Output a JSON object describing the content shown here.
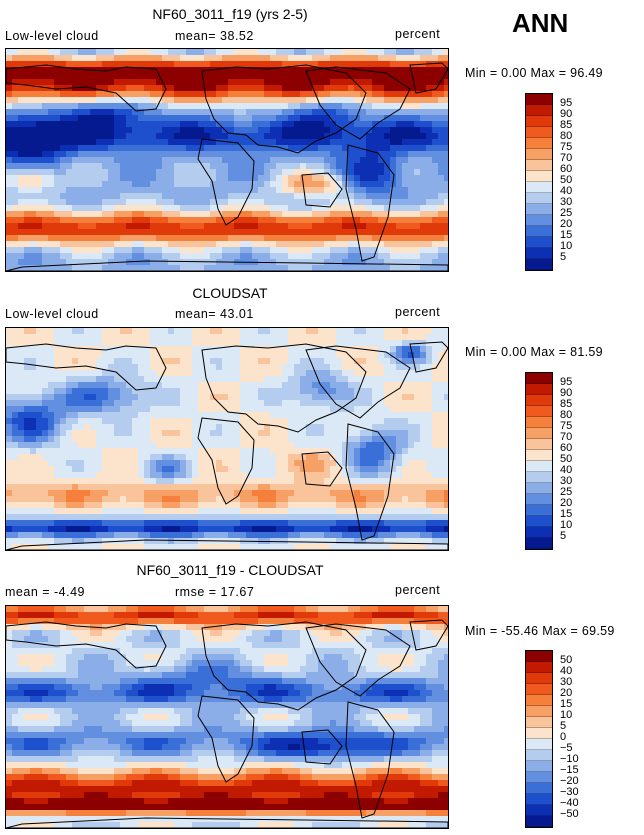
{
  "season": "ANN",
  "panels": [
    {
      "title": "NF60_3011_f19 (yrs 2-5)",
      "left_label": "Low-level cloud",
      "mid_label": "mean=  38.52",
      "units": "percent",
      "range_text": "Min =    0.00 Max =  96.49",
      "colorbar": {
        "labels": [
          "95",
          "90",
          "85",
          "80",
          "75",
          "70",
          "60",
          "50",
          "40",
          "30",
          "25",
          "20",
          "15",
          "10",
          "5"
        ],
        "colors": [
          "#8c0000",
          "#c21a00",
          "#e03a0a",
          "#f05a1e",
          "#f5803c",
          "#f7a066",
          "#f9c49b",
          "#fbe3cc",
          "#dbe8f5",
          "#b4cdef",
          "#8caee8",
          "#628fe0",
          "#3b6fd8",
          "#1e4fcc",
          "#0c2fb4",
          "#061a90"
        ]
      },
      "field": "model"
    },
    {
      "title": "CLOUDSAT",
      "left_label": "Low-level cloud",
      "mid_label": "mean=  43.01",
      "units": "percent",
      "range_text": "Min =    0.00 Max =  81.59",
      "colorbar": {
        "labels": [
          "95",
          "90",
          "85",
          "80",
          "75",
          "70",
          "60",
          "50",
          "40",
          "30",
          "25",
          "20",
          "15",
          "10",
          "5"
        ],
        "colors": [
          "#8c0000",
          "#c21a00",
          "#e03a0a",
          "#f05a1e",
          "#f5803c",
          "#f7a066",
          "#f9c49b",
          "#fbe3cc",
          "#dbe8f5",
          "#b4cdef",
          "#8caee8",
          "#628fe0",
          "#3b6fd8",
          "#1e4fcc",
          "#0c2fb4",
          "#061a90"
        ]
      },
      "field": "obs"
    },
    {
      "title": "NF60_3011_f19 - CLOUDSAT",
      "left_label": "mean =   -4.49",
      "mid_label": "rmse =  17.67",
      "units": "percent",
      "range_text": "Min = -55.46 Max =  69.59",
      "colorbar": {
        "labels": [
          "50",
          "40",
          "30",
          "20",
          "15",
          "10",
          "5",
          "0",
          "−5",
          "−10",
          "−15",
          "−20",
          "−30",
          "−40",
          "−50"
        ],
        "colors": [
          "#8c0000",
          "#c21a00",
          "#e03a0a",
          "#f05a1e",
          "#f5803c",
          "#f7a066",
          "#f9c49b",
          "#fbe3cc",
          "#dbe8f5",
          "#b4cdef",
          "#8caee8",
          "#628fe0",
          "#3b6fd8",
          "#1e4fcc",
          "#0c2fb4",
          "#061a90"
        ]
      },
      "field": "diff"
    }
  ],
  "chart_data": {
    "type": "heatmap",
    "title": "ANN",
    "variable": "Low-level cloud",
    "units": "percent",
    "maps": [
      {
        "name": "NF60_3011_f19 (yrs 2-5)",
        "mean": 38.52,
        "min": 0.0,
        "max": 96.49
      },
      {
        "name": "CLOUDSAT",
        "mean": 43.01,
        "min": 0.0,
        "max": 81.59
      },
      {
        "name": "NF60_3011_f19 - CLOUDSAT",
        "mean": -4.49,
        "rmse": 17.67,
        "min": -55.46,
        "max": 69.59
      }
    ]
  }
}
